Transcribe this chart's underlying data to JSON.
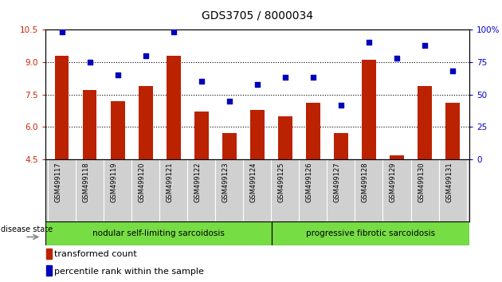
{
  "title": "GDS3705 / 8000034",
  "samples": [
    "GSM499117",
    "GSM499118",
    "GSM499119",
    "GSM499120",
    "GSM499121",
    "GSM499122",
    "GSM499123",
    "GSM499124",
    "GSM499125",
    "GSM499126",
    "GSM499127",
    "GSM499128",
    "GSM499129",
    "GSM499130",
    "GSM499131"
  ],
  "bar_values": [
    9.3,
    7.7,
    7.2,
    7.9,
    9.3,
    6.7,
    5.7,
    6.8,
    6.5,
    7.1,
    5.7,
    9.1,
    4.7,
    7.9,
    7.1
  ],
  "dot_values": [
    98,
    75,
    65,
    80,
    98,
    60,
    45,
    58,
    63,
    63,
    42,
    90,
    78,
    88,
    68
  ],
  "ylim_left": [
    4.5,
    10.5
  ],
  "ylim_right": [
    0,
    100
  ],
  "yticks_left": [
    4.5,
    6.0,
    7.5,
    9.0,
    10.5
  ],
  "yticks_right": [
    0,
    25,
    50,
    75,
    100
  ],
  "ytick_labels_right": [
    "0",
    "25",
    "50",
    "75",
    "100%"
  ],
  "hlines": [
    6.0,
    7.5,
    9.0
  ],
  "bar_color": "#bb2200",
  "dot_color": "#0000bb",
  "group1_label": "nodular self-limiting sarcoidosis",
  "group2_label": "progressive fibrotic sarcoidosis",
  "group1_count": 8,
  "group2_count": 7,
  "disease_state_label": "disease state",
  "legend_bar_label": "transformed count",
  "legend_dot_label": "percentile rank within the sample",
  "xtick_bg_color": "#d0d0d0",
  "group_bg_color": "#77dd44",
  "title_color": "#000000",
  "left_tick_color": "#cc2200",
  "right_tick_color": "#0000cc",
  "fig_width": 6.3,
  "fig_height": 3.54,
  "dpi": 100
}
